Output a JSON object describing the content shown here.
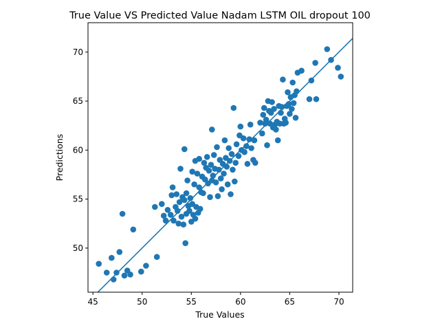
{
  "chart_data": {
    "type": "scatter",
    "title": "True Value VS Predicted Value  Nadam LSTM OIL dropout 100",
    "xlabel": "True Values",
    "ylabel": "Predictions",
    "xlim": [
      44.5,
      71.4
    ],
    "ylim": [
      45.5,
      73.0
    ],
    "xticks": [
      45,
      50,
      55,
      60,
      65,
      70
    ],
    "yticks": [
      50,
      55,
      60,
      65,
      70
    ],
    "xtick_labels": [
      "45",
      "50",
      "55",
      "60",
      "65",
      "70"
    ],
    "ytick_labels": [
      "50",
      "55",
      "60",
      "65",
      "70"
    ],
    "grid": false,
    "reference_line": {
      "slope": 1,
      "intercept": 0
    },
    "colors": {
      "points": "#1f77b4",
      "line": "#1f77b4"
    },
    "points": [
      [
        45.6,
        48.4
      ],
      [
        46.4,
        47.5
      ],
      [
        46.9,
        49.0
      ],
      [
        47.1,
        46.8
      ],
      [
        47.4,
        47.5
      ],
      [
        47.7,
        49.6
      ],
      [
        48.0,
        53.5
      ],
      [
        48.2,
        47.2
      ],
      [
        48.5,
        47.7
      ],
      [
        48.8,
        47.3
      ],
      [
        49.1,
        51.9
      ],
      [
        49.9,
        47.6
      ],
      [
        50.4,
        48.2
      ],
      [
        51.3,
        54.2
      ],
      [
        51.5,
        49.1
      ],
      [
        52.0,
        54.5
      ],
      [
        52.2,
        53.3
      ],
      [
        52.4,
        52.8
      ],
      [
        52.6,
        53.9
      ],
      [
        52.9,
        53.4
      ],
      [
        53.0,
        55.4
      ],
      [
        53.1,
        56.2
      ],
      [
        53.2,
        52.8
      ],
      [
        53.4,
        54.2
      ],
      [
        53.5,
        55.5
      ],
      [
        53.6,
        53.8
      ],
      [
        53.7,
        52.5
      ],
      [
        53.8,
        54.7
      ],
      [
        53.9,
        58.1
      ],
      [
        54.0,
        53.2
      ],
      [
        54.1,
        55.2
      ],
      [
        54.2,
        52.4
      ],
      [
        54.3,
        54.9
      ],
      [
        54.3,
        60.1
      ],
      [
        54.4,
        50.5
      ],
      [
        54.5,
        53.5
      ],
      [
        54.5,
        55.6
      ],
      [
        54.6,
        56.9
      ],
      [
        54.7,
        54.3
      ],
      [
        54.8,
        53.8
      ],
      [
        54.9,
        55.1
      ],
      [
        55.0,
        52.7
      ],
      [
        55.1,
        54.5
      ],
      [
        55.1,
        57.8
      ],
      [
        55.2,
        53.4
      ],
      [
        55.3,
        56.5
      ],
      [
        55.4,
        58.9
      ],
      [
        55.4,
        53.0
      ],
      [
        55.5,
        54.2
      ],
      [
        55.6,
        57.6
      ],
      [
        55.7,
        53.6
      ],
      [
        55.8,
        56.2
      ],
      [
        55.8,
        59.1
      ],
      [
        55.9,
        54.0
      ],
      [
        56.0,
        55.7
      ],
      [
        56.1,
        57.3
      ],
      [
        56.2,
        55.6
      ],
      [
        56.3,
        58.7
      ],
      [
        56.4,
        57.0
      ],
      [
        56.5,
        58.2
      ],
      [
        56.6,
        59.3
      ],
      [
        56.7,
        56.6
      ],
      [
        56.8,
        57.9
      ],
      [
        56.9,
        55.2
      ],
      [
        57.0,
        58.5
      ],
      [
        57.1,
        62.1
      ],
      [
        57.1,
        56.9
      ],
      [
        57.2,
        57.4
      ],
      [
        57.3,
        59.5
      ],
      [
        57.4,
        58.1
      ],
      [
        57.5,
        56.7
      ],
      [
        57.6,
        60.3
      ],
      [
        57.7,
        55.3
      ],
      [
        57.8,
        58.0
      ],
      [
        57.9,
        59.0
      ],
      [
        58.0,
        57.1
      ],
      [
        58.1,
        56.0
      ],
      [
        58.2,
        58.6
      ],
      [
        58.3,
        57.6
      ],
      [
        58.4,
        61.0
      ],
      [
        58.5,
        59.2
      ],
      [
        58.6,
        58.3
      ],
      [
        58.7,
        56.5
      ],
      [
        58.8,
        60.2
      ],
      [
        58.9,
        58.9
      ],
      [
        59.0,
        55.5
      ],
      [
        59.1,
        59.6
      ],
      [
        59.2,
        58.0
      ],
      [
        59.3,
        64.3
      ],
      [
        59.4,
        56.8
      ],
      [
        59.5,
        58.7
      ],
      [
        59.6,
        60.6
      ],
      [
        59.8,
        59.4
      ],
      [
        59.9,
        61.5
      ],
      [
        60.0,
        62.4
      ],
      [
        60.1,
        60.0
      ],
      [
        60.3,
        61.2
      ],
      [
        60.4,
        59.8
      ],
      [
        60.6,
        60.4
      ],
      [
        60.7,
        58.6
      ],
      [
        60.9,
        61.1
      ],
      [
        61.0,
        62.6
      ],
      [
        61.1,
        60.2
      ],
      [
        61.3,
        59.0
      ],
      [
        61.4,
        61.0
      ],
      [
        61.5,
        58.7
      ],
      [
        62.0,
        62.8
      ],
      [
        62.2,
        61.7
      ],
      [
        62.3,
        63.6
      ],
      [
        62.4,
        64.3
      ],
      [
        62.5,
        62.7
      ],
      [
        62.6,
        63.1
      ],
      [
        62.7,
        60.5
      ],
      [
        62.8,
        65.0
      ],
      [
        62.9,
        64.0
      ],
      [
        63.0,
        62.7
      ],
      [
        63.1,
        63.8
      ],
      [
        63.2,
        64.9
      ],
      [
        63.3,
        62.3
      ],
      [
        63.4,
        64.2
      ],
      [
        63.5,
        62.6
      ],
      [
        63.6,
        62.1
      ],
      [
        63.7,
        62.9
      ],
      [
        63.8,
        61.0
      ],
      [
        63.9,
        64.5
      ],
      [
        64.0,
        62.7
      ],
      [
        64.1,
        63.8
      ],
      [
        64.2,
        64.4
      ],
      [
        64.3,
        67.2
      ],
      [
        64.4,
        62.7
      ],
      [
        64.5,
        63.2
      ],
      [
        64.6,
        62.8
      ],
      [
        64.7,
        64.5
      ],
      [
        64.8,
        65.9
      ],
      [
        64.9,
        64.7
      ],
      [
        65.0,
        63.7
      ],
      [
        65.1,
        65.4
      ],
      [
        65.2,
        64.2
      ],
      [
        65.3,
        66.9
      ],
      [
        65.4,
        64.8
      ],
      [
        65.5,
        65.6
      ],
      [
        65.6,
        63.3
      ],
      [
        65.7,
        66.0
      ],
      [
        65.8,
        67.9
      ],
      [
        66.2,
        68.1
      ],
      [
        67.0,
        65.2
      ],
      [
        67.2,
        67.1
      ],
      [
        67.6,
        68.9
      ],
      [
        67.7,
        65.2
      ],
      [
        68.8,
        70.3
      ],
      [
        69.2,
        69.2
      ],
      [
        69.9,
        68.4
      ],
      [
        70.2,
        67.5
      ]
    ]
  }
}
